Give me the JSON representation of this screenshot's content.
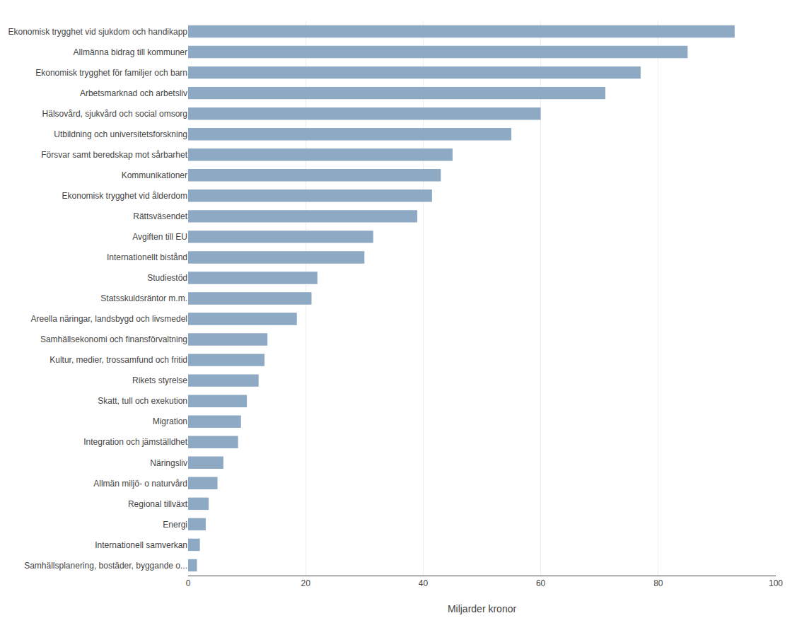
{
  "chart_data": {
    "type": "bar",
    "orientation": "horizontal",
    "xlabel": "Miljarder kronor",
    "categories": [
      "Ekonomisk trygghet vid sjukdom och handikapp",
      "Allmänna bidrag till kommuner",
      "Ekonomisk trygghet för familjer och barn",
      "Arbetsmarknad och arbetsliv",
      "Hälsovård, sjukvård och social omsorg",
      "Utbildning och universitetsforskning",
      "Försvar samt beredskap mot sårbarhet",
      "Kommunikationer",
      "Ekonomisk trygghet vid ålderdom",
      "Rättsväsendet",
      "Avgiften till EU",
      "Internationellt bistånd",
      "Studiestöd",
      "Statsskuldsräntor m.m.",
      "Areella näringar, landsbygd och livsmedel",
      "Samhällsekonomi och finansförvaltning",
      "Kultur, medier, trossamfund och fritid",
      "Rikets styrelse",
      "Skatt, tull och exekution",
      "Migration",
      "Integration och jämställdhet",
      "Näringsliv",
      "Allmän miljö- o naturvård",
      "Regional tillväxt",
      "Energi",
      "Internationell samverkan",
      "Samhällsplanering, bostäder, byggande o..."
    ],
    "values": [
      93.0,
      85.0,
      77.0,
      71.0,
      60.0,
      55.0,
      45.0,
      43.0,
      41.5,
      39.0,
      31.5,
      30.0,
      22.0,
      21.0,
      18.5,
      13.5,
      13.0,
      12.0,
      10.0,
      9.0,
      8.5,
      6.0,
      5.0,
      3.5,
      3.0,
      2.0,
      1.5
    ],
    "color": "#8DA9C4",
    "xlim": [
      0,
      100
    ],
    "xticks": [
      0,
      20,
      40,
      60,
      80,
      100
    ],
    "grid": true
  }
}
